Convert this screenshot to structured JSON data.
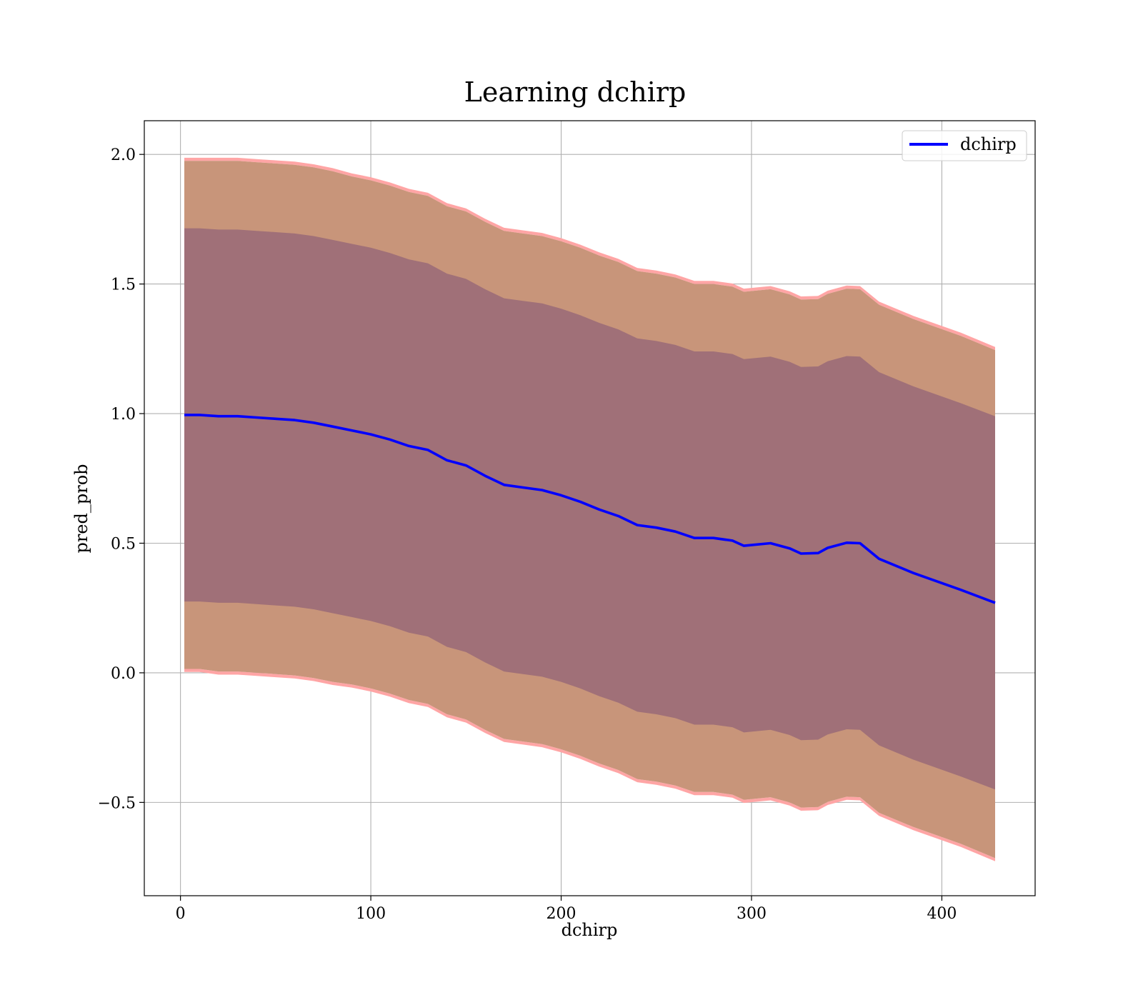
{
  "chart_data": {
    "type": "line",
    "title": "Learning dchirp",
    "xlabel": "dchirp",
    "ylabel": "pred_prob",
    "xlim": [
      -19,
      449
    ],
    "ylim": [
      -0.86,
      2.13
    ],
    "xticks": [
      0,
      100,
      200,
      300,
      400
    ],
    "yticks": [
      -0.5,
      0.0,
      0.5,
      1.0,
      1.5,
      2.0
    ],
    "xtick_labels": [
      "0",
      "100",
      "200",
      "300",
      "400"
    ],
    "ytick_labels": [
      "−0.5",
      "0.0",
      "0.5",
      "1.0",
      "1.5",
      "2.0"
    ],
    "grid": true,
    "legend_position": "top-right",
    "colors": {
      "line": "#0000ff",
      "band_outer_edge": "#ffa5a5",
      "band_outer": "#c8957a",
      "band_inner": "#a07078",
      "grid": "#b0b0b0"
    },
    "series": [
      {
        "name": "dchirp",
        "type": "line",
        "x": [
          2,
          10,
          20,
          30,
          40,
          50,
          60,
          70,
          80,
          90,
          100,
          110,
          120,
          130,
          140,
          150,
          160,
          170,
          180,
          190,
          200,
          210,
          220,
          230,
          240,
          250,
          260,
          270,
          280,
          290,
          296,
          310,
          320,
          326,
          335,
          340,
          350,
          357,
          367,
          385,
          410,
          428
        ],
        "y": [
          0.995,
          0.995,
          0.99,
          0.99,
          0.985,
          0.98,
          0.975,
          0.965,
          0.95,
          0.935,
          0.92,
          0.9,
          0.875,
          0.86,
          0.82,
          0.8,
          0.76,
          0.725,
          0.715,
          0.705,
          0.685,
          0.66,
          0.63,
          0.605,
          0.57,
          0.56,
          0.545,
          0.52,
          0.52,
          0.51,
          0.49,
          0.5,
          0.48,
          0.46,
          0.462,
          0.482,
          0.502,
          0.5,
          0.44,
          0.385,
          0.32,
          0.27
        ]
      }
    ],
    "bands": [
      {
        "level": "outer",
        "upper": [
          1.975,
          1.975,
          1.975,
          1.975,
          1.97,
          1.965,
          1.96,
          1.95,
          1.935,
          1.915,
          1.9,
          1.88,
          1.855,
          1.84,
          1.8,
          1.78,
          1.74,
          1.705,
          1.695,
          1.685,
          1.665,
          1.64,
          1.61,
          1.585,
          1.55,
          1.54,
          1.525,
          1.5,
          1.5,
          1.49,
          1.47,
          1.48,
          1.46,
          1.44,
          1.442,
          1.462,
          1.482,
          1.48,
          1.42,
          1.365,
          1.3,
          1.245
        ],
        "lower": [
          0.015,
          0.015,
          0.005,
          0.005,
          0.0,
          -0.005,
          -0.01,
          -0.02,
          -0.035,
          -0.045,
          -0.06,
          -0.08,
          -0.105,
          -0.12,
          -0.16,
          -0.18,
          -0.22,
          -0.255,
          -0.265,
          -0.275,
          -0.295,
          -0.32,
          -0.35,
          -0.375,
          -0.41,
          -0.42,
          -0.435,
          -0.46,
          -0.46,
          -0.47,
          -0.49,
          -0.48,
          -0.5,
          -0.52,
          -0.518,
          -0.498,
          -0.478,
          -0.48,
          -0.54,
          -0.595,
          -0.66,
          -0.715
        ]
      },
      {
        "level": "inner",
        "upper": [
          1.715,
          1.715,
          1.71,
          1.71,
          1.705,
          1.7,
          1.695,
          1.685,
          1.67,
          1.655,
          1.64,
          1.62,
          1.595,
          1.58,
          1.54,
          1.52,
          1.48,
          1.445,
          1.435,
          1.425,
          1.405,
          1.38,
          1.35,
          1.325,
          1.29,
          1.28,
          1.265,
          1.24,
          1.24,
          1.23,
          1.21,
          1.22,
          1.2,
          1.18,
          1.182,
          1.202,
          1.222,
          1.22,
          1.16,
          1.105,
          1.04,
          0.99
        ],
        "lower": [
          0.275,
          0.275,
          0.27,
          0.27,
          0.265,
          0.26,
          0.255,
          0.245,
          0.23,
          0.215,
          0.2,
          0.18,
          0.155,
          0.14,
          0.1,
          0.08,
          0.04,
          0.005,
          -0.005,
          -0.015,
          -0.035,
          -0.06,
          -0.09,
          -0.115,
          -0.15,
          -0.16,
          -0.175,
          -0.2,
          -0.2,
          -0.21,
          -0.23,
          -0.22,
          -0.24,
          -0.26,
          -0.258,
          -0.238,
          -0.218,
          -0.22,
          -0.28,
          -0.335,
          -0.4,
          -0.45
        ]
      }
    ]
  }
}
